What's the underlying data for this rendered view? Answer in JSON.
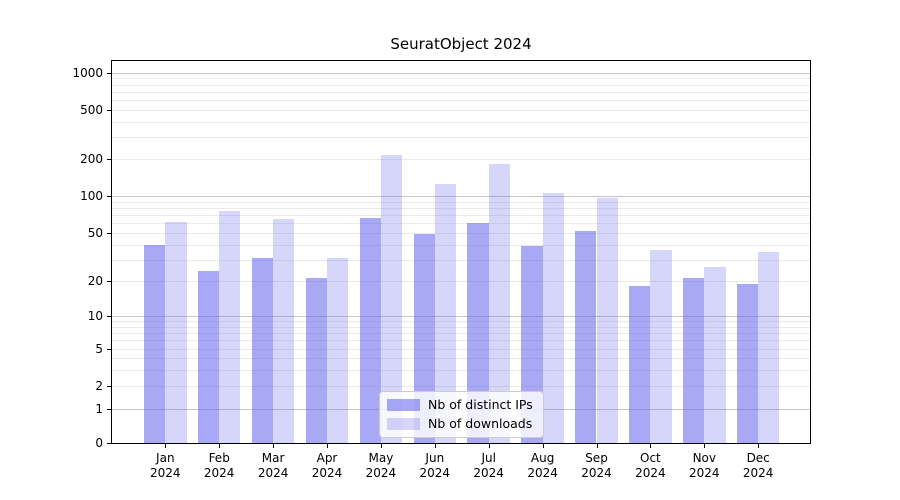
{
  "chart_data": {
    "type": "bar",
    "title": "SeuratObject 2024",
    "categories": [
      "Jan 2024",
      "Feb 2024",
      "Mar 2024",
      "Apr 2024",
      "May 2024",
      "Jun 2024",
      "Jul 2024",
      "Aug 2024",
      "Sep 2024",
      "Oct 2024",
      "Nov 2024",
      "Dec 2024"
    ],
    "series": [
      {
        "name": "Nb of distinct IPs",
        "color": "#6666ee",
        "opacity": 0.57,
        "values": [
          40,
          24,
          31,
          21,
          66,
          49,
          60,
          39,
          52,
          18,
          21,
          19
        ]
      },
      {
        "name": "Nb of downloads",
        "color": "#6666ee",
        "opacity": 0.27,
        "values": [
          61,
          76,
          65,
          31,
          214,
          125,
          181,
          105,
          96,
          36,
          26,
          35
        ]
      }
    ],
    "yticks": [
      0,
      1,
      2,
      5,
      10,
      20,
      50,
      100,
      200,
      500,
      1000
    ],
    "yscale": "symlog",
    "ylim": [
      0,
      1000
    ],
    "xlabel": "",
    "ylabel": "",
    "grid": "on",
    "legend_position": "lower center"
  },
  "colors": {
    "grid_major": "#c6c6c6",
    "grid_minor": "#eaeaea",
    "axis": "#000000",
    "legend_border": "#cccccc"
  }
}
